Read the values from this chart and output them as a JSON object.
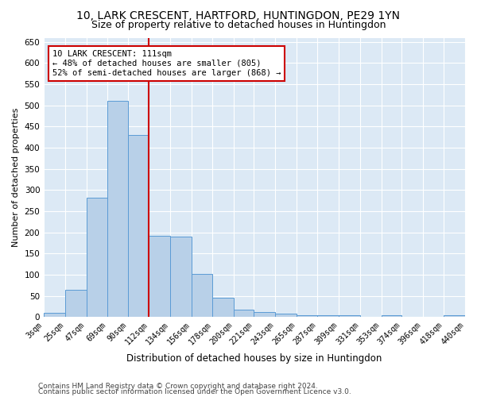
{
  "title": "10, LARK CRESCENT, HARTFORD, HUNTINGDON, PE29 1YN",
  "subtitle": "Size of property relative to detached houses in Huntingdon",
  "xlabel": "Distribution of detached houses by size in Huntingdon",
  "ylabel": "Number of detached properties",
  "bins": [
    "3sqm",
    "25sqm",
    "47sqm",
    "69sqm",
    "90sqm",
    "112sqm",
    "134sqm",
    "156sqm",
    "178sqm",
    "200sqm",
    "221sqm",
    "243sqm",
    "265sqm",
    "287sqm",
    "309sqm",
    "331sqm",
    "353sqm",
    "374sqm",
    "396sqm",
    "418sqm",
    "440sqm"
  ],
  "bin_edges": [
    3,
    25,
    47,
    69,
    90,
    112,
    134,
    156,
    178,
    200,
    221,
    243,
    265,
    287,
    309,
    331,
    353,
    374,
    396,
    418,
    440
  ],
  "values": [
    10,
    65,
    282,
    510,
    430,
    192,
    190,
    102,
    46,
    17,
    11,
    8,
    5,
    5,
    5,
    0,
    5,
    0,
    0,
    5
  ],
  "bar_color": "#b8d0e8",
  "bar_edge_color": "#5b9bd5",
  "vline_x": 112,
  "vline_color": "#cc0000",
  "annotation_line1": "10 LARK CRESCENT: 111sqm",
  "annotation_line2": "← 48% of detached houses are smaller (805)",
  "annotation_line3": "52% of semi-detached houses are larger (868) →",
  "annotation_box_color": "#ffffff",
  "annotation_box_edge": "#cc0000",
  "ylim": [
    0,
    660
  ],
  "yticks": [
    0,
    50,
    100,
    150,
    200,
    250,
    300,
    350,
    400,
    450,
    500,
    550,
    600,
    650
  ],
  "bg_color": "#dce9f5",
  "footer1": "Contains HM Land Registry data © Crown copyright and database right 2024.",
  "footer2": "Contains public sector information licensed under the Open Government Licence v3.0.",
  "title_fontsize": 10,
  "subtitle_fontsize": 9,
  "footer_fontsize": 6.5
}
